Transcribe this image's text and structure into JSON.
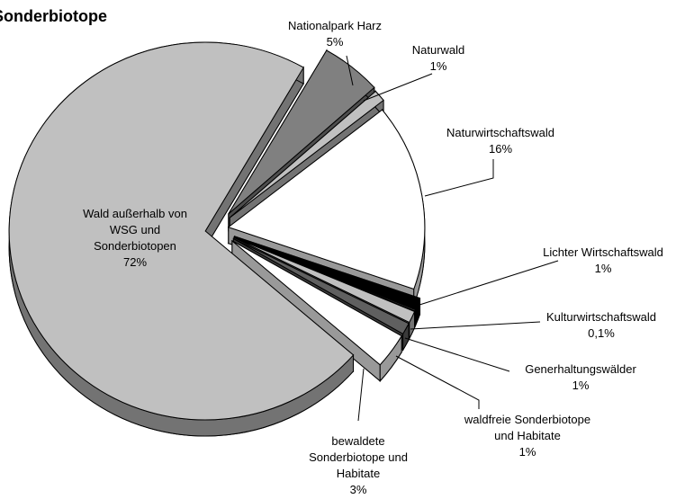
{
  "chart_data": {
    "type": "pie",
    "title": "Sonderbiotope",
    "categories": [
      "Nationalpark Harz",
      "Naturwald",
      "Naturwirtschaftswald",
      "Lichter Wirtschaftswald",
      "Kulturwirtschaftswald",
      "Generhaltungswälder",
      "waldfreie Sonderbiotope und Habitate",
      "bewaldete Sonderbiotope und Habitate",
      "Wald außerhalb von WSG und Sonderbiotopen"
    ],
    "values": [
      5,
      1,
      16,
      1,
      0.1,
      1,
      1,
      3,
      72
    ],
    "value_labels": [
      "5%",
      "1%",
      "16%",
      "1%",
      "0,1%",
      "1%",
      "1%",
      "3%",
      "72%"
    ],
    "colors": [
      "#808080",
      "#c0c0c0",
      "#ffffff",
      "#000000",
      "#808080",
      "#c0c0c0",
      "#606060",
      "#ffffff",
      "#c0c0c0"
    ]
  }
}
